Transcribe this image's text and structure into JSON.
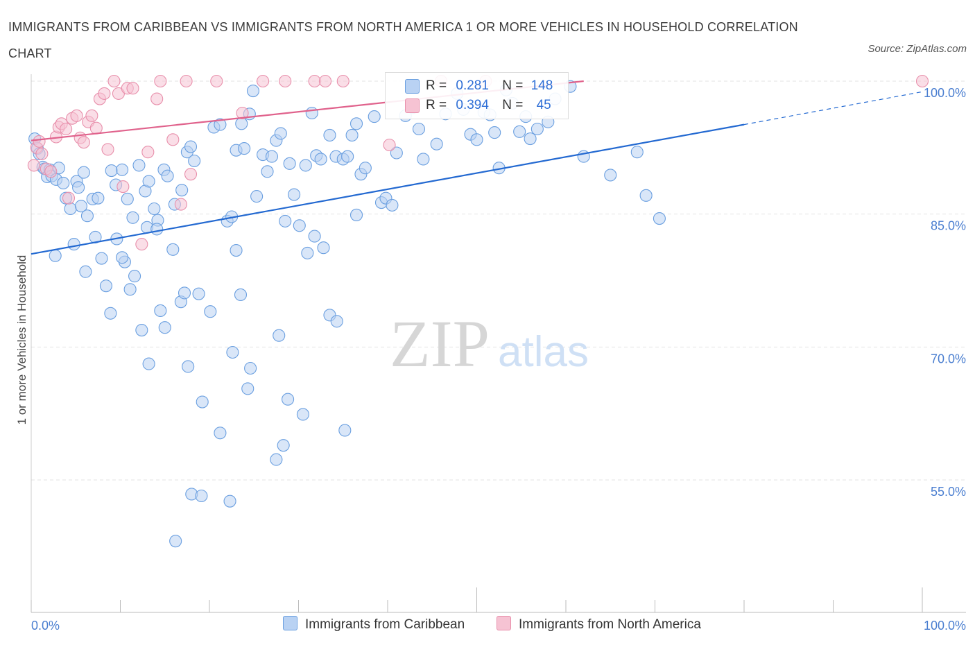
{
  "title": "IMMIGRANTS FROM CARIBBEAN VS IMMIGRANTS FROM NORTH AMERICA 1 OR MORE VEHICLES IN HOUSEHOLD CORRELATION CHART",
  "source": "Source: ZipAtlas.com",
  "watermark": {
    "zip": "ZIP",
    "atlas": "atlas"
  },
  "colors": {
    "blue": "#6a9fe0",
    "blue_fill": "#b9d2f3",
    "blue_line": "#2369d1",
    "pink": "#e88fab",
    "pink_fill": "#f6c3d3",
    "pink_line": "#e0628c",
    "tick_label": "#4a7ed0",
    "grid": "#e3e3e3"
  },
  "legend": {
    "r_label": "R =",
    "n_label": "N =",
    "caribbean": {
      "r": "0.281",
      "n": "148"
    },
    "north_america": {
      "r": "0.394",
      "n": "45"
    }
  },
  "chart_data": {
    "type": "scatter",
    "title": "IMMIGRANTS FROM CARIBBEAN VS IMMIGRANTS FROM NORTH AMERICA 1 OR MORE VEHICLES IN HOUSEHOLD CORRELATION CHART",
    "xlabel": "",
    "ylabel": "1 or more Vehicles in Household",
    "xlim": [
      0,
      100
    ],
    "ylim": [
      40,
      100
    ],
    "x_tick_labels": [
      "0.0%",
      "100.0%"
    ],
    "y_ticks": [
      55,
      70,
      85,
      100
    ],
    "y_tick_labels": [
      "55.0%",
      "70.0%",
      "85.0%",
      "100.0%"
    ],
    "grid": true,
    "legend_position": "bottom",
    "series": [
      {
        "name": "Immigrants from Caribbean",
        "color": "#6a9fe0",
        "trend": {
          "x": [
            0,
            80
          ],
          "y": [
            80.5,
            95.1
          ],
          "dashed_to": [
            100,
            98.8
          ]
        },
        "points": [
          [
            0.4,
            93.5
          ],
          [
            0.7,
            92.4
          ],
          [
            0.9,
            91.8
          ],
          [
            1.3,
            90.3
          ],
          [
            1.5,
            90.1
          ],
          [
            1.8,
            89.2
          ],
          [
            2.1,
            90.0
          ],
          [
            2.3,
            89.3
          ],
          [
            2.8,
            88.9
          ],
          [
            3.1,
            90.2
          ],
          [
            3.6,
            88.5
          ],
          [
            3.9,
            86.8
          ],
          [
            4.4,
            85.6
          ],
          [
            5.1,
            88.7
          ],
          [
            5.3,
            88.0
          ],
          [
            5.6,
            85.9
          ],
          [
            5.9,
            89.7
          ],
          [
            6.3,
            84.8
          ],
          [
            6.9,
            86.7
          ],
          [
            7.5,
            86.8
          ],
          [
            9.0,
            89.9
          ],
          [
            9.5,
            88.3
          ],
          [
            10.2,
            90.0
          ],
          [
            10.8,
            86.7
          ],
          [
            11.4,
            84.6
          ],
          [
            12.1,
            90.5
          ],
          [
            12.8,
            87.6
          ],
          [
            13.2,
            88.7
          ],
          [
            13.8,
            85.6
          ],
          [
            14.2,
            84.3
          ],
          [
            14.9,
            90.0
          ],
          [
            15.3,
            89.3
          ],
          [
            16.1,
            86.1
          ],
          [
            16.9,
            87.7
          ],
          [
            17.5,
            92.0
          ],
          [
            17.9,
            92.6
          ],
          [
            18.3,
            91.0
          ],
          [
            20.5,
            94.8
          ],
          [
            21.2,
            95.1
          ],
          [
            22.0,
            84.2
          ],
          [
            22.5,
            84.7
          ],
          [
            23.0,
            92.2
          ],
          [
            23.6,
            95.2
          ],
          [
            23.9,
            92.4
          ],
          [
            24.5,
            96.3
          ],
          [
            24.9,
            98.9
          ],
          [
            25.3,
            87.0
          ],
          [
            26.0,
            91.7
          ],
          [
            26.5,
            89.8
          ],
          [
            27.0,
            91.5
          ],
          [
            27.5,
            93.3
          ],
          [
            28.0,
            94.1
          ],
          [
            28.5,
            84.2
          ],
          [
            29.0,
            90.7
          ],
          [
            29.5,
            87.2
          ],
          [
            30.1,
            83.7
          ],
          [
            30.8,
            90.5
          ],
          [
            31.5,
            96.4
          ],
          [
            32.0,
            91.6
          ],
          [
            32.5,
            91.2
          ],
          [
            33.5,
            93.9
          ],
          [
            34.2,
            91.5
          ],
          [
            35.0,
            91.2
          ],
          [
            35.5,
            91.5
          ],
          [
            36.0,
            93.9
          ],
          [
            36.5,
            95.2
          ],
          [
            37.0,
            89.5
          ],
          [
            37.5,
            90.2
          ],
          [
            38.5,
            96.0
          ],
          [
            39.3,
            86.3
          ],
          [
            39.8,
            86.8
          ],
          [
            40.5,
            86.0
          ],
          [
            41.0,
            91.9
          ],
          [
            42.0,
            96.1
          ],
          [
            42.8,
            97.0
          ],
          [
            43.5,
            94.6
          ],
          [
            44.0,
            91.2
          ],
          [
            45.5,
            92.9
          ],
          [
            46.5,
            96.3
          ],
          [
            47.8,
            98.6
          ],
          [
            48.5,
            96.8
          ],
          [
            49.3,
            94.0
          ],
          [
            50.0,
            93.4
          ],
          [
            50.8,
            96.5
          ],
          [
            51.5,
            96.2
          ],
          [
            52.0,
            94.2
          ],
          [
            52.5,
            90.2
          ],
          [
            53.3,
            99.0
          ],
          [
            54.0,
            97.5
          ],
          [
            54.8,
            94.3
          ],
          [
            55.5,
            96.0
          ],
          [
            56.0,
            93.5
          ],
          [
            56.8,
            94.6
          ],
          [
            58.0,
            95.4
          ],
          [
            58.8,
            98.0
          ],
          [
            60.5,
            99.4
          ],
          [
            62.0,
            91.5
          ],
          [
            65.0,
            89.4
          ],
          [
            68.0,
            92.0
          ],
          [
            69.0,
            87.1
          ],
          [
            70.5,
            84.5
          ],
          [
            2.7,
            80.3
          ],
          [
            4.8,
            81.6
          ],
          [
            6.1,
            78.5
          ],
          [
            7.2,
            82.4
          ],
          [
            7.9,
            80.0
          ],
          [
            8.4,
            76.9
          ],
          [
            8.9,
            73.8
          ],
          [
            9.6,
            82.2
          ],
          [
            10.5,
            79.6
          ],
          [
            11.1,
            76.5
          ],
          [
            11.6,
            78.0
          ],
          [
            12.4,
            71.9
          ],
          [
            13.0,
            83.5
          ],
          [
            13.2,
            68.1
          ],
          [
            14.5,
            74.1
          ],
          [
            15.0,
            72.2
          ],
          [
            15.9,
            81.0
          ],
          [
            16.8,
            75.1
          ],
          [
            17.2,
            76.1
          ],
          [
            17.6,
            67.8
          ],
          [
            18.8,
            76.0
          ],
          [
            19.2,
            63.8
          ],
          [
            20.1,
            74.0
          ],
          [
            21.2,
            60.3
          ],
          [
            22.6,
            69.4
          ],
          [
            23.0,
            80.9
          ],
          [
            23.5,
            75.9
          ],
          [
            24.3,
            65.3
          ],
          [
            24.6,
            67.6
          ],
          [
            27.5,
            57.3
          ],
          [
            27.8,
            71.3
          ],
          [
            28.3,
            58.9
          ],
          [
            28.8,
            64.1
          ],
          [
            30.5,
            62.4
          ],
          [
            31.0,
            80.6
          ],
          [
            31.8,
            82.5
          ],
          [
            32.8,
            81.2
          ],
          [
            33.5,
            73.6
          ],
          [
            34.3,
            72.9
          ],
          [
            35.2,
            60.6
          ],
          [
            36.5,
            84.9
          ],
          [
            16.2,
            48.1
          ],
          [
            18.0,
            53.4
          ],
          [
            19.1,
            53.2
          ],
          [
            22.3,
            52.6
          ],
          [
            14.1,
            83.3
          ],
          [
            10.2,
            80.1
          ]
        ]
      },
      {
        "name": "Immigrants from North America",
        "color": "#e88fab",
        "trend": {
          "x": [
            0,
            62
          ],
          "y": [
            93.3,
            100.0
          ]
        },
        "points": [
          [
            0.3,
            90.5
          ],
          [
            0.6,
            92.5
          ],
          [
            0.9,
            93.2
          ],
          [
            1.2,
            91.8
          ],
          [
            1.7,
            90.1
          ],
          [
            2.2,
            89.8
          ],
          [
            2.8,
            93.7
          ],
          [
            3.1,
            94.8
          ],
          [
            3.4,
            95.2
          ],
          [
            3.9,
            94.6
          ],
          [
            4.2,
            86.8
          ],
          [
            4.6,
            95.8
          ],
          [
            5.1,
            96.1
          ],
          [
            5.5,
            93.6
          ],
          [
            5.9,
            93.1
          ],
          [
            6.4,
            95.4
          ],
          [
            6.8,
            96.1
          ],
          [
            7.3,
            94.7
          ],
          [
            7.7,
            98.0
          ],
          [
            8.2,
            98.6
          ],
          [
            8.6,
            92.3
          ],
          [
            9.3,
            100.0
          ],
          [
            9.8,
            98.6
          ],
          [
            10.3,
            88.1
          ],
          [
            10.8,
            99.2
          ],
          [
            11.4,
            99.2
          ],
          [
            12.4,
            81.6
          ],
          [
            13.1,
            92.0
          ],
          [
            14.1,
            98.0
          ],
          [
            14.5,
            100.0
          ],
          [
            15.9,
            93.4
          ],
          [
            16.8,
            86.1
          ],
          [
            17.9,
            89.5
          ],
          [
            17.4,
            100.0
          ],
          [
            20.8,
            100.0
          ],
          [
            23.7,
            96.4
          ],
          [
            26.0,
            100.0
          ],
          [
            28.5,
            100.0
          ],
          [
            31.8,
            100.0
          ],
          [
            33.0,
            100.0
          ],
          [
            35.0,
            100.0
          ],
          [
            40.2,
            92.8
          ],
          [
            46.0,
            100.0
          ],
          [
            51.0,
            100.0
          ],
          [
            100.0,
            100.0
          ]
        ]
      }
    ]
  }
}
